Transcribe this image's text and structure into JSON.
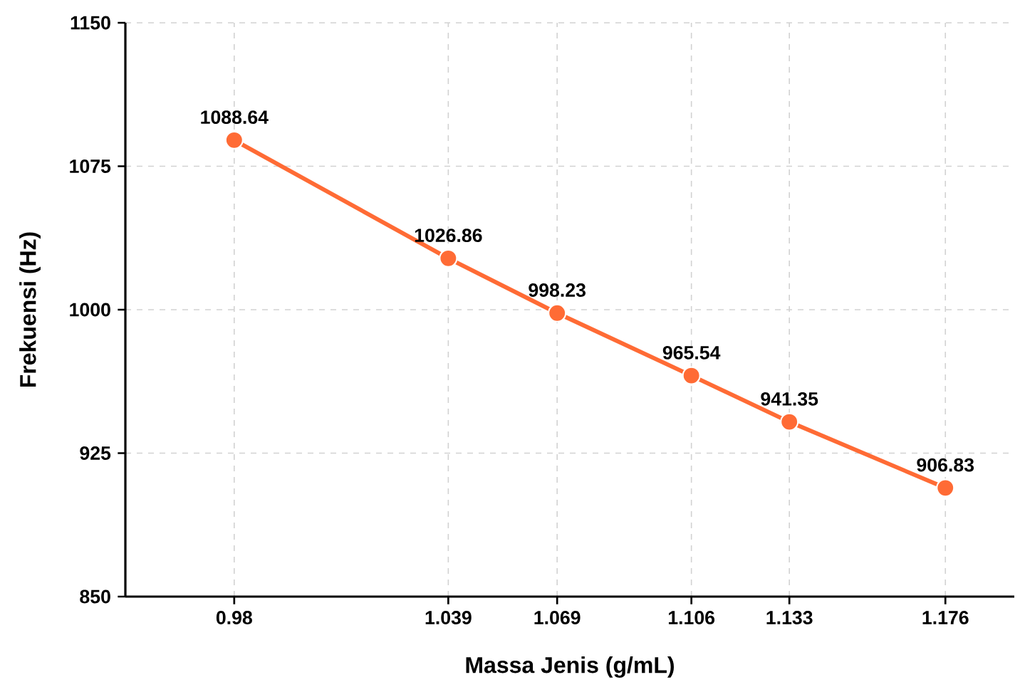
{
  "chart_data": {
    "type": "line",
    "xlabel": "Massa Jenis (g/mL)",
    "ylabel": "Frekuensi (Hz)",
    "x": [
      0.98,
      1.039,
      1.069,
      1.106,
      1.133,
      1.176
    ],
    "series": [
      {
        "color": "#ff6b35",
        "values": [
          1088.64,
          1026.86,
          998.23,
          965.54,
          941.35,
          906.83
        ]
      }
    ],
    "xlim": [
      0.95,
      1.195
    ],
    "xticks": [
      0.98,
      1.039,
      1.069,
      1.106,
      1.133,
      1.176
    ],
    "ylim": [
      850,
      1150
    ],
    "yticks": [
      850,
      925,
      1000,
      1075,
      1150
    ],
    "grid": true,
    "marker": "circle",
    "line_style": "solid",
    "data_labels": true
  }
}
